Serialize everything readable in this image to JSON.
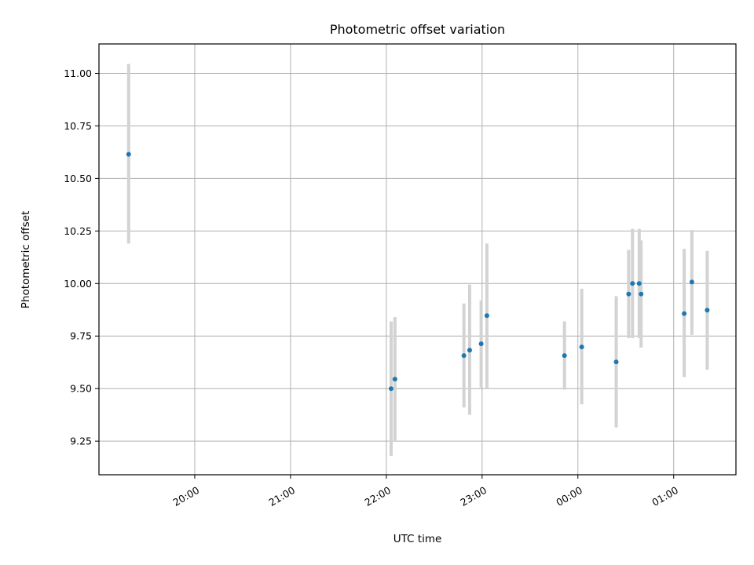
{
  "chart_data": {
    "type": "scatter",
    "title": "Photometric offset variation",
    "xlabel": "UTC time",
    "ylabel": "Photometric offset",
    "x_tick_labels": [
      "20:00",
      "21:00",
      "22:00",
      "23:00",
      "00:00",
      "01:00"
    ],
    "x_tick_hours": [
      20,
      21,
      22,
      23,
      24,
      25
    ],
    "xlim_hours": [
      19.0,
      25.65
    ],
    "y_ticks": [
      9.25,
      9.5,
      9.75,
      10.0,
      10.25,
      10.5,
      10.75,
      11.0
    ],
    "y_tick_labels": [
      "9.25",
      "9.50",
      "9.75",
      "10.00",
      "10.25",
      "10.50",
      "10.75",
      "11.00"
    ],
    "ylim": [
      9.09,
      11.14
    ],
    "grid": true,
    "point_color": "#1f77b4",
    "errorbar_color": "#d3d3d3",
    "points": [
      {
        "t": 19.31,
        "y": 10.615,
        "lo": 10.19,
        "hi": 11.045
      },
      {
        "t": 22.05,
        "y": 9.5,
        "lo": 9.18,
        "hi": 9.82
      },
      {
        "t": 22.09,
        "y": 9.545,
        "lo": 9.25,
        "hi": 9.84
      },
      {
        "t": 22.81,
        "y": 9.657,
        "lo": 9.41,
        "hi": 9.905
      },
      {
        "t": 22.87,
        "y": 9.683,
        "lo": 9.375,
        "hi": 9.995
      },
      {
        "t": 22.99,
        "y": 9.713,
        "lo": 9.505,
        "hi": 9.92
      },
      {
        "t": 23.05,
        "y": 9.847,
        "lo": 9.5,
        "hi": 10.19
      },
      {
        "t": 23.86,
        "y": 9.657,
        "lo": 9.495,
        "hi": 9.82
      },
      {
        "t": 24.04,
        "y": 9.698,
        "lo": 9.425,
        "hi": 9.975
      },
      {
        "t": 24.4,
        "y": 9.627,
        "lo": 9.315,
        "hi": 9.94
      },
      {
        "t": 24.53,
        "y": 9.95,
        "lo": 9.74,
        "hi": 10.16
      },
      {
        "t": 24.57,
        "y": 10.0,
        "lo": 9.74,
        "hi": 10.26
      },
      {
        "t": 24.64,
        "y": 10.0,
        "lo": 9.74,
        "hi": 10.26
      },
      {
        "t": 24.66,
        "y": 9.95,
        "lo": 9.695,
        "hi": 10.205
      },
      {
        "t": 25.11,
        "y": 9.857,
        "lo": 9.555,
        "hi": 10.165
      },
      {
        "t": 25.19,
        "y": 10.007,
        "lo": 9.755,
        "hi": 10.255
      },
      {
        "t": 25.35,
        "y": 9.873,
        "lo": 9.59,
        "hi": 10.155
      }
    ]
  }
}
